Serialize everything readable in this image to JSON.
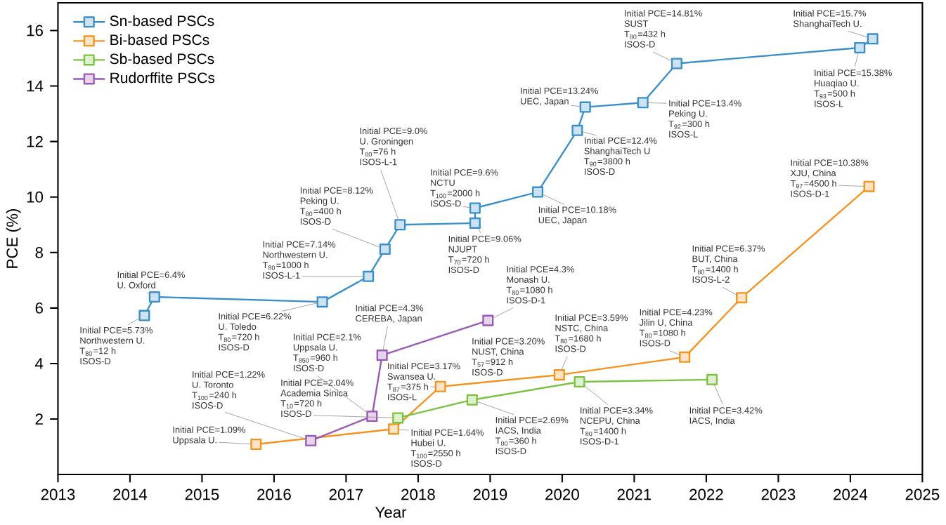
{
  "chart_data": {
    "type": "line",
    "xlabel": "Year",
    "ylabel": "PCE (%)",
    "xlim": [
      2013,
      2025
    ],
    "ylim": [
      0,
      17
    ],
    "xticks": [
      2013,
      2014,
      2015,
      2016,
      2017,
      2018,
      2019,
      2020,
      2021,
      2022,
      2023,
      2024,
      2025
    ],
    "yticks": [
      2,
      4,
      6,
      8,
      10,
      12,
      14,
      16
    ],
    "legend": "top left",
    "marker": "square",
    "series": [
      {
        "name": "Sn-based PSCs",
        "color": "#3a8fc8",
        "x": [
          2014.2,
          2014.34,
          2016.67,
          2017.31,
          2017.54,
          2017.75,
          2018.79,
          2018.79,
          2019.66,
          2020.21,
          2020.32,
          2021.12,
          2021.59,
          2024.13,
          2024.31
        ],
        "values": [
          5.73,
          6.4,
          6.22,
          7.14,
          8.12,
          9.0,
          9.06,
          9.6,
          10.18,
          12.4,
          13.24,
          13.4,
          14.81,
          15.38,
          15.7
        ]
      },
      {
        "name": "Bi-based PSCs",
        "color": "#f39420",
        "x": [
          2015.75,
          2017.66,
          2018.31,
          2019.96,
          2021.7,
          2022.49,
          2024.26
        ],
        "values": [
          1.09,
          1.64,
          3.17,
          3.59,
          4.23,
          6.37,
          10.38
        ]
      },
      {
        "name": "Sb-based PSCs",
        "color": "#7cc242",
        "x": [
          2017.72,
          2018.75,
          2020.24,
          2022.08
        ],
        "values": [
          2.04,
          2.69,
          3.34,
          3.42
        ]
      },
      {
        "name": "Rudorffite PSCs",
        "color": "#9b59b6",
        "x": [
          2016.51,
          2017.36,
          2017.5,
          2018.97
        ],
        "values": [
          1.22,
          2.1,
          4.3,
          5.55
        ]
      }
    ],
    "annotations": [
      {
        "text": "Initial PCE=5.73%",
        "x": 2014.2,
        "y": 5.73
      },
      "Northwestern U.",
      "T$_{80}$=12 h",
      "ISOS-D",
      "Initial PCE=6.4%",
      {
        "text": "U. Oxford",
        "x": 2014.34,
        "y": 6.4
      },
      {
        "text": "Initial PCE=6.22%",
        "x": 2016.67,
        "y": 6.22
      },
      "U. Toledo",
      "T$_{80}$=720 h",
      "ISOS-D",
      "Initial PCE=7.14%",
      "Northwestern U.",
      "T$_{80}$=1000 h",
      {
        "text": "ISOS-L-1",
        "x": 2017.31,
        "y": 7.14
      },
      "Initial PCE=8.12%",
      "Peking U.",
      "T$_{80}$=400 h",
      {
        "text": "ISOS-D",
        "x": 2017.54,
        "y": 8.12
      },
      "Initial PCE=9.0%",
      "U. Groningen",
      "T$_{80}$=76 h",
      {
        "text": "ISOS-L-1",
        "x": 2017.75,
        "y": 9.0
      },
      {
        "text": "Initial PCE=9.06%",
        "x": 2018.79,
        "y": 9.06
      },
      "NJUPT",
      "T$_{70}$=720 h",
      "ISOS-D",
      "Initial PCE=9.6%",
      "NCTU",
      "T$_{100}$=2000 h",
      {
        "text": "ISOS-D",
        "x": 2018.79,
        "y": 9.6
      },
      {
        "text": "Initial PCE=10.18%",
        "x": 2019.66,
        "y": 10.18
      },
      "UEC, Japan",
      {
        "text": "Initial PCE=12.4%",
        "x": 2020.21,
        "y": 12.4
      },
      "ShanghaiTech U",
      "T$_{90}$=3800 h",
      "ISOS-D",
      "Initial PCE=13.24%",
      {
        "text": "UEC, Japan",
        "x": 2020.32,
        "y": 13.24
      },
      {
        "text": "Initial PCE=13.4%",
        "x": 2021.12,
        "y": 13.4
      },
      "Peking U.",
      "T$_{92}$=300 h",
      "ISOS-L",
      "Initial PCE=14.81%",
      "SUST",
      "T$_{80}$=432 h",
      {
        "text": "ISOS-D",
        "x": 2021.59,
        "y": 14.81
      },
      {
        "text": "Initial PCE=15.38%",
        "x": 2024.13,
        "y": 15.38
      },
      "Huaqiao U.",
      "T$_{93}$=500 h",
      "ISOS-L",
      "Initial PCE=15.7%",
      {
        "text": "ShanghaiTech  U.",
        "x": 2024.31,
        "y": 15.7
      },
      "Initial PCE=1.09%",
      {
        "text": "Uppsala U.",
        "x": 2015.75,
        "y": 1.09
      },
      {
        "text": "Initial PCE=1.64%",
        "x": 2017.66,
        "y": 1.64
      },
      "Hubei U.",
      "T$_{100}$=2550 h",
      "ISOS-D",
      "Initial PCE=3.17%",
      "Swansea U.",
      {
        "text": "T$_{87}$=375 h",
        "x": 2018.31,
        "y": 3.17
      },
      "ISOS-L",
      "Initial PCE=3.20%",
      "NUST, China",
      "T$_{57}$=912 h",
      "ISOS-D",
      "Initial PCE=3.59%",
      "NSTC, China",
      "T$_{80}$=1680 h",
      {
        "text": "ISOS-D",
        "x": 2019.96,
        "y": 3.59
      },
      "Initial PCE=4.23%",
      "Jilin U, China",
      "T$_{80}$=1080 h",
      {
        "text": "ISOS-D",
        "x": 2021.7,
        "y": 4.23
      },
      "Initial PCE=6.37%",
      "BUT, China",
      "T$_{80}$=1400 h",
      {
        "text": "ISOS-L-2",
        "x": 2022.49,
        "y": 6.37
      },
      "Initial PCE=10.38%",
      "XJU, China",
      {
        "text": "T$_{97}$=4500 h",
        "x": 2024.26,
        "y": 10.38
      },
      "ISOS-D-1",
      "Initial PCE=2.04%",
      "Academia Sinica",
      "T$_{10}$=720 h",
      {
        "text": "ISOS-D",
        "x": 2017.72,
        "y": 2.04
      },
      {
        "text": "Initial PCE=2.69%",
        "x": 2018.75,
        "y": 2.69
      },
      "IACS, India",
      "T$_{80}$=360 h",
      "ISOS-D",
      {
        "text": "Initial PCE=3.34%",
        "x": 2020.24,
        "y": 3.34
      },
      "NCEPU, China",
      "T$_{80}$=1400 h",
      "ISOS-D-1",
      {
        "text": "Initial PCE=3.42%",
        "x": 2022.08,
        "y": 3.42
      },
      "IACS, India",
      "Initial PCE=1.22%",
      "U. Toronto",
      "T$_{100}$=240 h",
      {
        "text": "ISOS-D",
        "x": 2016.51,
        "y": 1.22
      },
      "Initial PCE=2.1%",
      "Uppsala U.",
      "T$_{850}$=960 h",
      {
        "text": "ISOS-D",
        "x": 2017.36,
        "y": 2.1
      },
      "Initial PCE=4.3%",
      {
        "text": "CEREBA, Japan",
        "x": 2017.5,
        "y": 4.3
      },
      "Initial PCE=4.3%",
      "Monash U.",
      "T$_{80}$=1080 h",
      {
        "text": "ISOS-D-1",
        "x": 2018.97,
        "y": 5.55
      }
    ]
  }
}
